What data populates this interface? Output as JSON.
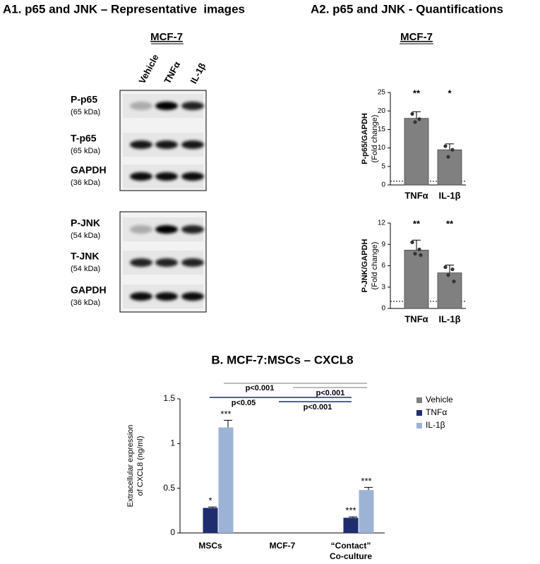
{
  "panel_a1": {
    "title": "A1. p65 and JNK – Representative  images",
    "cell_line": "MCF-7",
    "lanes": [
      "Vehicle",
      "TNFα",
      "IL-1β"
    ],
    "blots": [
      [
        {
          "name": "P-p65",
          "kda": "(65 kDa)"
        },
        {
          "name": "T-p65",
          "kda": "(65 kDa)"
        },
        {
          "name": "GAPDH",
          "kda": "(36 kDa)"
        }
      ],
      [
        {
          "name": "P-JNK",
          "kda": "(54 kDa)"
        },
        {
          "name": "T-JNK",
          "kda": "(54 kDa)"
        },
        {
          "name": "GAPDH",
          "kda": "(36 kDa)"
        }
      ]
    ]
  },
  "panel_a2": {
    "title": "A2. p65 and JNK - Quantifications",
    "cell_line": "MCF-7"
  },
  "chart_data": [
    {
      "type": "bar",
      "ylabel": [
        "P-p65/GAPDH",
        "(Fold change)"
      ],
      "categories": [
        "TNFα",
        "IL-1β"
      ],
      "values": [
        18,
        9.5
      ],
      "errors": [
        1.8,
        1.6
      ],
      "points": [
        [
          19.2,
          17.8,
          17
        ],
        [
          10.5,
          9.5,
          7.6
        ]
      ],
      "stars": [
        "**",
        "*"
      ],
      "color": "#808080",
      "reference_line": 1,
      "ylim": [
        0,
        25
      ],
      "yticks": [
        0,
        5,
        10,
        15,
        20,
        25
      ]
    },
    {
      "type": "bar",
      "ylabel": [
        "P-JNK/GAPDH",
        "(Fold change)"
      ],
      "categories": [
        "TNFα",
        "IL-1β"
      ],
      "values": [
        8.2,
        5.0
      ],
      "errors": [
        1.4,
        1.1
      ],
      "points": [
        [
          9.3,
          8.3,
          7.7,
          7.5
        ],
        [
          5.8,
          5.5,
          4.7,
          3.8
        ]
      ],
      "stars": [
        "**",
        "**"
      ],
      "color": "#808080",
      "reference_line": 1,
      "ylim": [
        0,
        12
      ],
      "yticks": [
        0,
        3,
        6,
        9,
        12
      ]
    },
    {
      "type": "grouped_bar",
      "title": "B. MCF-7:MSCs – CXCL8",
      "ylabel": [
        "Extracellular expression",
        "of  CXCL8 (ng/ml)"
      ],
      "categories": [
        "MSCs",
        "MCF-7",
        [
          "“Contact”",
          "Co-culture"
        ]
      ],
      "series": [
        {
          "name": "Vehicle",
          "color": "#7f7f7f",
          "values": [
            0,
            0,
            0
          ],
          "errors": [
            0,
            0,
            0
          ],
          "stars": [
            null,
            null,
            null
          ]
        },
        {
          "name": "TNFα",
          "color": "#1f2d6e",
          "values": [
            0.28,
            0,
            0.17
          ],
          "errors": [
            0.01,
            0,
            0.01
          ],
          "stars": [
            "*",
            null,
            "***"
          ]
        },
        {
          "name": "IL-1β",
          "color": "#9db3d6",
          "values": [
            1.18,
            0,
            0.48
          ],
          "errors": [
            0.08,
            0,
            0.03
          ],
          "stars": [
            "***",
            null,
            "***"
          ]
        }
      ],
      "brackets": [
        {
          "label": "p<0.001",
          "color": "#a6a6a6"
        },
        {
          "label": "p<0.001",
          "color": "#a6a6a6"
        },
        {
          "label": "p<0.05",
          "color": "#1f2d6e"
        },
        {
          "label": "p<0.001",
          "color": "#1f2d6e"
        }
      ],
      "legend": "right",
      "ylim": [
        0,
        1.5
      ],
      "yticks": [
        0,
        0.5,
        1,
        1.5
      ]
    }
  ]
}
